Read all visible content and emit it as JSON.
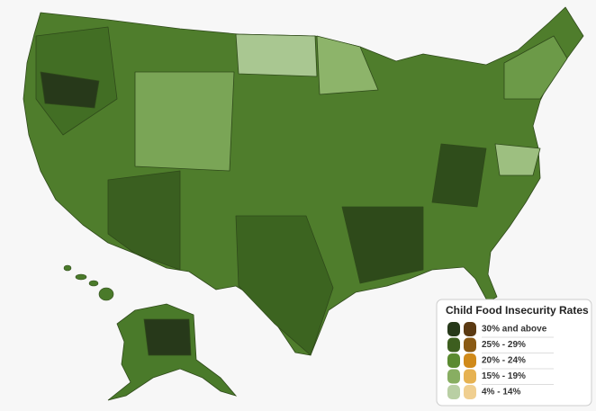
{
  "legend": {
    "title": "Child Food Insecurity Rates",
    "items": [
      {
        "label": "30% and above",
        "colors": [
          "#27391a",
          "#5b3a12"
        ]
      },
      {
        "label": "25% - 29%",
        "colors": [
          "#3d5e1f",
          "#8a5a14"
        ]
      },
      {
        "label": "20% - 24%",
        "colors": [
          "#5a8a30",
          "#d08a1a"
        ]
      },
      {
        "label": "15% - 19%",
        "colors": [
          "#88ae62",
          "#e6b252"
        ]
      },
      {
        "label": "4% - 14%",
        "colors": [
          "#b9cfa4",
          "#f0cf90"
        ]
      }
    ]
  }
}
